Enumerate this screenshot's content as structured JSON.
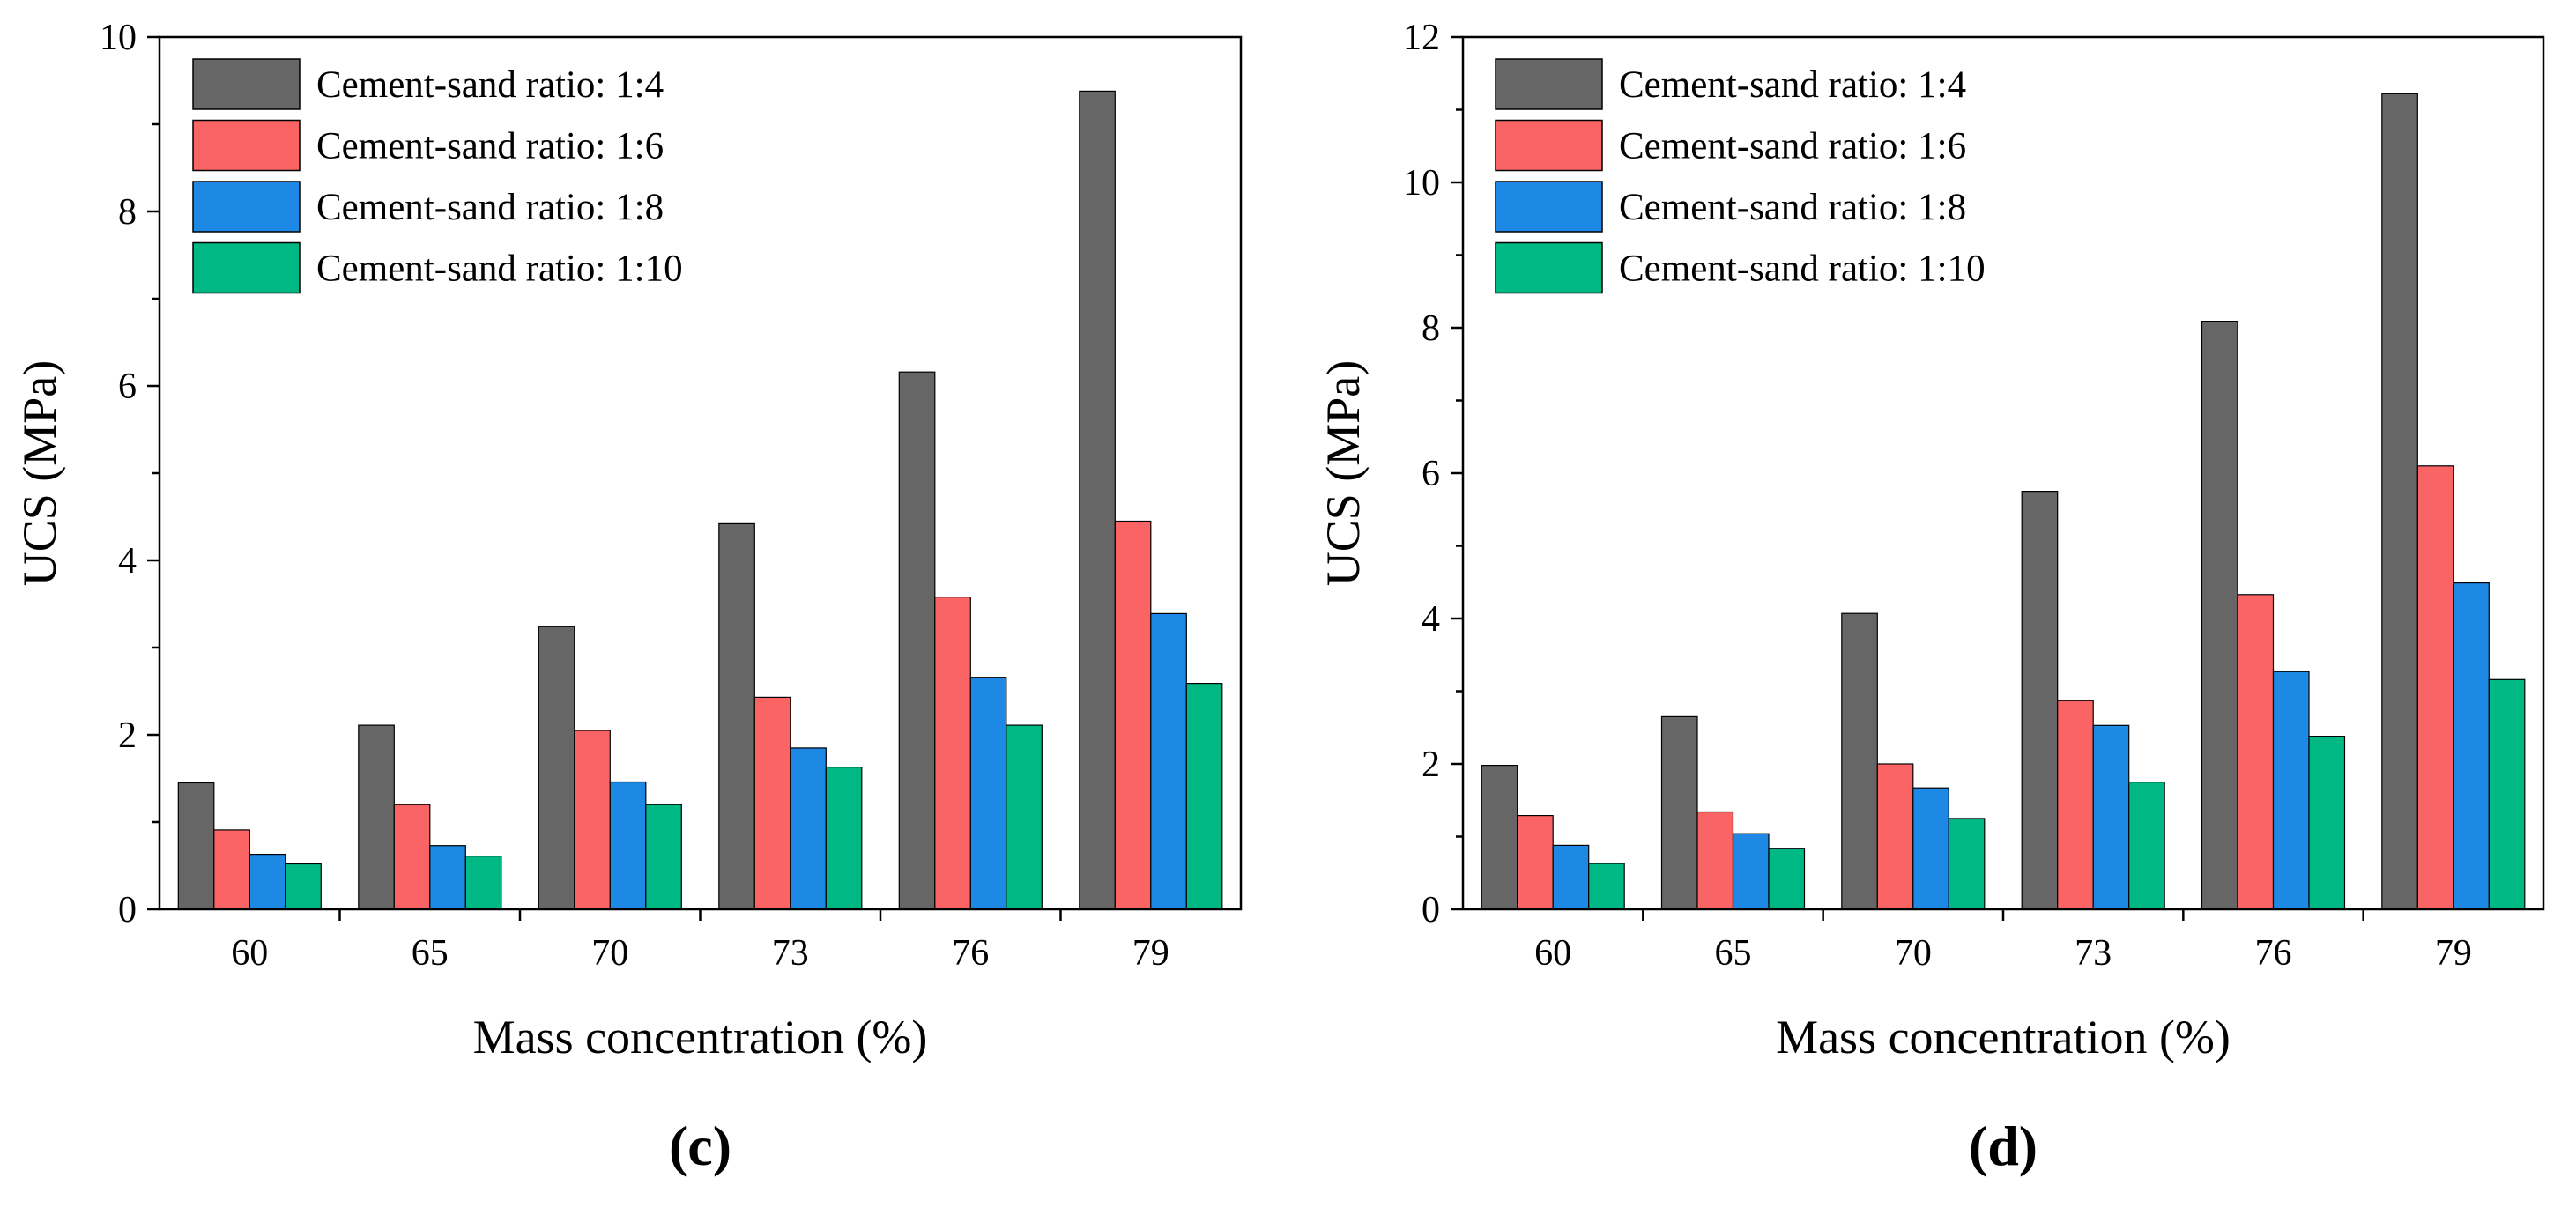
{
  "chart_data": [
    {
      "type": "bar",
      "panel_label": "(c)",
      "xlabel": "Mass concentration (%)",
      "ylabel": "UCS (MPa)",
      "categories": [
        "60",
        "65",
        "70",
        "73",
        "76",
        "79"
      ],
      "ylim": [
        0,
        10
      ],
      "yticks": [
        "0",
        "2",
        "4",
        "6",
        "8",
        "10"
      ],
      "grid": false,
      "legend_position": "top-left",
      "series": [
        {
          "name": "Cement-sand ratio: 1:4",
          "color": "#666666",
          "values": [
            1.45,
            2.11,
            3.24,
            4.42,
            6.16,
            9.38
          ]
        },
        {
          "name": "Cement-sand ratio: 1:6",
          "color": "#fa6464",
          "values": [
            0.91,
            1.2,
            2.05,
            2.43,
            3.58,
            4.45
          ]
        },
        {
          "name": "Cement-sand ratio: 1:8",
          "color": "#1e88e5",
          "values": [
            0.63,
            0.73,
            1.46,
            1.85,
            2.66,
            3.39
          ]
        },
        {
          "name": "Cement-sand ratio: 1:10",
          "color": "#00b884",
          "values": [
            0.52,
            0.61,
            1.2,
            1.63,
            2.11,
            2.59
          ]
        }
      ]
    },
    {
      "type": "bar",
      "panel_label": "(d)",
      "xlabel": "Mass concentration (%)",
      "ylabel": "UCS (MPa)",
      "categories": [
        "60",
        "65",
        "70",
        "73",
        "76",
        "79"
      ],
      "ylim": [
        0,
        12
      ],
      "yticks": [
        "0",
        "2",
        "4",
        "6",
        "8",
        "10",
        "12"
      ],
      "grid": false,
      "legend_position": "top-left",
      "series": [
        {
          "name": "Cement-sand ratio: 1:4",
          "color": "#666666",
          "values": [
            1.98,
            2.65,
            4.07,
            5.75,
            8.09,
            11.22
          ]
        },
        {
          "name": "Cement-sand ratio: 1:6",
          "color": "#fa6464",
          "values": [
            1.29,
            1.34,
            2.0,
            2.87,
            4.33,
            6.1
          ]
        },
        {
          "name": "Cement-sand ratio: 1:8",
          "color": "#1e88e5",
          "values": [
            0.88,
            1.04,
            1.67,
            2.53,
            3.27,
            4.49
          ]
        },
        {
          "name": "Cement-sand ratio: 1:10",
          "color": "#00b884",
          "values": [
            0.63,
            0.84,
            1.25,
            1.75,
            2.38,
            3.16
          ]
        }
      ]
    }
  ]
}
